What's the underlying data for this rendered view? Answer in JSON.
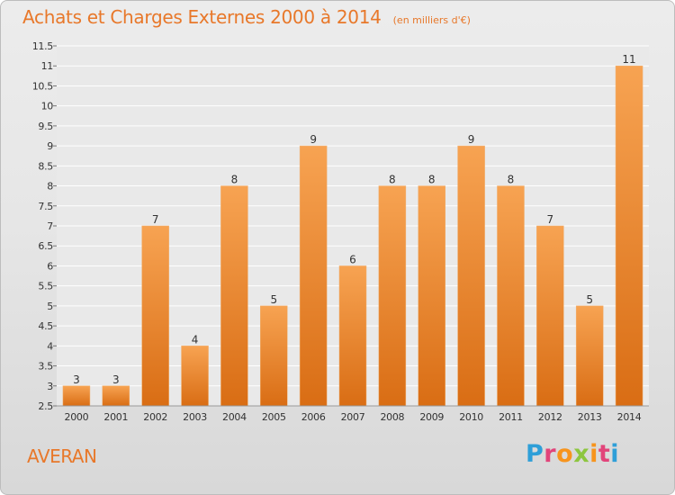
{
  "header": {
    "title": "Achats et Charges Externes 2000 à 2014",
    "unit": "(en milliers d'€)"
  },
  "commune": "AVERAN",
  "logo": {
    "text": "Proxiti"
  },
  "colors": {
    "title": "#e8782a",
    "bar_light": "#f7a352",
    "bar_dark": "#d96d14",
    "grid": "#ffffff"
  },
  "chart_data": {
    "type": "bar",
    "title": "Achats et Charges Externes 2000 à 2014",
    "subtitle": "(en milliers d'€)",
    "categories": [
      "2000",
      "2001",
      "2002",
      "2003",
      "2004",
      "2005",
      "2006",
      "2007",
      "2008",
      "2009",
      "2010",
      "2011",
      "2012",
      "2013",
      "2014"
    ],
    "values": [
      3,
      3,
      7,
      4,
      8,
      5,
      9,
      6,
      8,
      8,
      9,
      8,
      7,
      5,
      11
    ],
    "data_labels": [
      "3",
      "3",
      "7",
      "4",
      "8",
      "5",
      "9",
      "6",
      "8",
      "8",
      "9",
      "8",
      "7",
      "5",
      "11"
    ],
    "ylim": [
      2.5,
      11.5
    ],
    "yticks": [
      2.5,
      3,
      3.5,
      4,
      4.5,
      5,
      5.5,
      6,
      6.5,
      7,
      7.5,
      8,
      8.5,
      9,
      9.5,
      10,
      10.5,
      11,
      11.5
    ],
    "ytick_labels": [
      "2.5",
      "3",
      "3.5",
      "4",
      "4.5",
      "5",
      "5.5",
      "6",
      "6.5",
      "7",
      "7.5",
      "8",
      "8.5",
      "9",
      "9.5",
      "10",
      "10.5",
      "11",
      "11.5"
    ],
    "grid": true,
    "legend": "none"
  }
}
